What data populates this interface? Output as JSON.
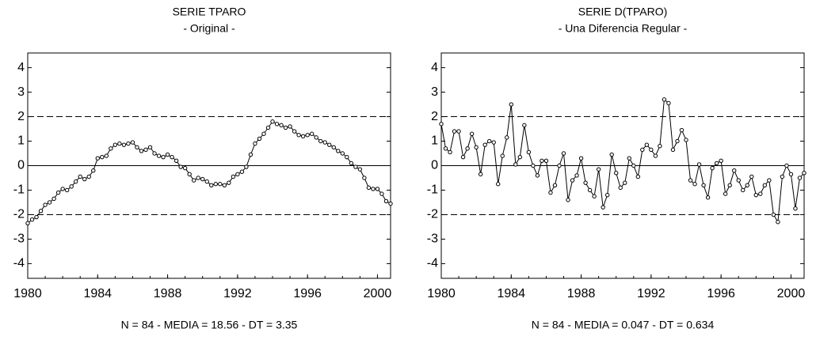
{
  "chart_data": [
    {
      "type": "line",
      "title": "SERIE TPARO",
      "subtitle": "- Original -",
      "note": "N = 84 - MEDIA = 18.56 - DT = 3.35",
      "x": [
        1980,
        1980.25,
        1980.5,
        1980.75,
        1981,
        1981.25,
        1981.5,
        1981.75,
        1982,
        1982.25,
        1982.5,
        1982.75,
        1983,
        1983.25,
        1983.5,
        1983.75,
        1984,
        1984.25,
        1984.5,
        1984.75,
        1985,
        1985.25,
        1985.5,
        1985.75,
        1986,
        1986.25,
        1986.5,
        1986.75,
        1987,
        1987.25,
        1987.5,
        1987.75,
        1988,
        1988.25,
        1988.5,
        1988.75,
        1989,
        1989.25,
        1989.5,
        1989.75,
        1990,
        1990.25,
        1990.5,
        1990.75,
        1991,
        1991.25,
        1991.5,
        1991.75,
        1992,
        1992.25,
        1992.5,
        1992.75,
        1993,
        1993.25,
        1993.5,
        1993.75,
        1994,
        1994.25,
        1994.5,
        1994.75,
        1995,
        1995.25,
        1995.5,
        1995.75,
        1996,
        1996.25,
        1996.5,
        1996.75,
        1997,
        1997.25,
        1997.5,
        1997.75,
        1998,
        1998.25,
        1998.5,
        1998.75,
        1999,
        1999.25,
        1999.5,
        1999.75,
        2000,
        2000.25,
        2000.5,
        2000.75
      ],
      "series": [
        {
          "color": "#000000",
          "values": [
            -2.35,
            -2.2,
            -2.1,
            -1.85,
            -1.6,
            -1.5,
            -1.35,
            -1.1,
            -0.95,
            -1.0,
            -0.85,
            -0.65,
            -0.45,
            -0.55,
            -0.45,
            -0.2,
            0.3,
            0.35,
            0.4,
            0.7,
            0.85,
            0.9,
            0.85,
            0.9,
            0.95,
            0.75,
            0.6,
            0.65,
            0.75,
            0.5,
            0.4,
            0.35,
            0.45,
            0.35,
            0.2,
            -0.05,
            -0.1,
            -0.35,
            -0.6,
            -0.5,
            -0.55,
            -0.65,
            -0.8,
            -0.75,
            -0.75,
            -0.8,
            -0.7,
            -0.45,
            -0.35,
            -0.25,
            -0.05,
            0.45,
            0.9,
            1.1,
            1.3,
            1.55,
            1.8,
            1.7,
            1.65,
            1.55,
            1.6,
            1.4,
            1.25,
            1.2,
            1.25,
            1.3,
            1.15,
            1.0,
            0.95,
            0.85,
            0.75,
            0.6,
            0.5,
            0.35,
            0.1,
            -0.05,
            -0.15,
            -0.5,
            -0.9,
            -0.95,
            -0.95,
            -1.15,
            -1.45,
            -1.55
          ]
        }
      ],
      "xlim": [
        1980,
        2000.75
      ],
      "xticks": [
        1980,
        1984,
        1988,
        1992,
        1996,
        2000
      ],
      "ylim": [
        -4.6,
        4.6
      ],
      "yticks": [
        -4,
        -3,
        -2,
        -1,
        0,
        1,
        2,
        3,
        4
      ],
      "hlines": [
        {
          "y": 2,
          "dashed": true
        },
        {
          "y": 0,
          "dashed": false
        },
        {
          "y": -2,
          "dashed": true
        }
      ]
    },
    {
      "type": "line",
      "title": "SERIE D(TPARO)",
      "subtitle": "- Una Diferencia Regular -",
      "note": "N = 84 - MEDIA = 0.047 - DT = 0.634",
      "x": [
        1980,
        1980.25,
        1980.5,
        1980.75,
        1981,
        1981.25,
        1981.5,
        1981.75,
        1982,
        1982.25,
        1982.5,
        1982.75,
        1983,
        1983.25,
        1983.5,
        1983.75,
        1984,
        1984.25,
        1984.5,
        1984.75,
        1985,
        1985.25,
        1985.5,
        1985.75,
        1986,
        1986.25,
        1986.5,
        1986.75,
        1987,
        1987.25,
        1987.5,
        1987.75,
        1988,
        1988.25,
        1988.5,
        1988.75,
        1989,
        1989.25,
        1989.5,
        1989.75,
        1990,
        1990.25,
        1990.5,
        1990.75,
        1991,
        1991.25,
        1991.5,
        1991.75,
        1992,
        1992.25,
        1992.5,
        1992.75,
        1993,
        1993.25,
        1993.5,
        1993.75,
        1994,
        1994.25,
        1994.5,
        1994.75,
        1995,
        1995.25,
        1995.5,
        1995.75,
        1996,
        1996.25,
        1996.5,
        1996.75,
        1997,
        1997.25,
        1997.5,
        1997.75,
        1998,
        1998.25,
        1998.5,
        1998.75,
        1999,
        1999.25,
        1999.5,
        1999.75,
        2000,
        2000.25,
        2000.5,
        2000.75
      ],
      "series": [
        {
          "color": "#000000",
          "values": [
            1.7,
            0.7,
            0.55,
            1.4,
            1.4,
            0.35,
            0.7,
            1.3,
            0.75,
            -0.35,
            0.85,
            1.0,
            0.95,
            -0.75,
            0.4,
            1.15,
            2.5,
            0.05,
            0.35,
            1.65,
            0.55,
            0.0,
            -0.4,
            0.2,
            0.2,
            -1.1,
            -0.8,
            0.0,
            0.5,
            -1.4,
            -0.6,
            -0.4,
            0.3,
            -0.7,
            -1.0,
            -1.25,
            -0.15,
            -1.7,
            -1.2,
            0.45,
            -0.3,
            -0.9,
            -0.7,
            0.3,
            0.0,
            -0.45,
            0.65,
            0.85,
            0.65,
            0.4,
            0.8,
            2.7,
            2.55,
            0.65,
            1.0,
            1.45,
            1.05,
            -0.6,
            -0.75,
            0.05,
            -0.8,
            -1.3,
            -0.1,
            0.1,
            0.2,
            -1.15,
            -0.8,
            -0.2,
            -0.6,
            -1.0,
            -0.8,
            -0.45,
            -1.2,
            -1.15,
            -0.8,
            -0.6,
            -2.0,
            -2.3,
            -0.45,
            0.0,
            -0.35,
            -1.75,
            -0.5,
            -0.3
          ]
        }
      ],
      "xlim": [
        1980,
        2000.75
      ],
      "xticks": [
        1980,
        1984,
        1988,
        1992,
        1996,
        2000
      ],
      "ylim": [
        -4.6,
        4.6
      ],
      "yticks": [
        -4,
        -3,
        -2,
        -1,
        0,
        1,
        2,
        3,
        4
      ],
      "hlines": [
        {
          "y": 2,
          "dashed": true
        },
        {
          "y": 0,
          "dashed": false
        },
        {
          "y": -2,
          "dashed": true
        }
      ]
    }
  ]
}
